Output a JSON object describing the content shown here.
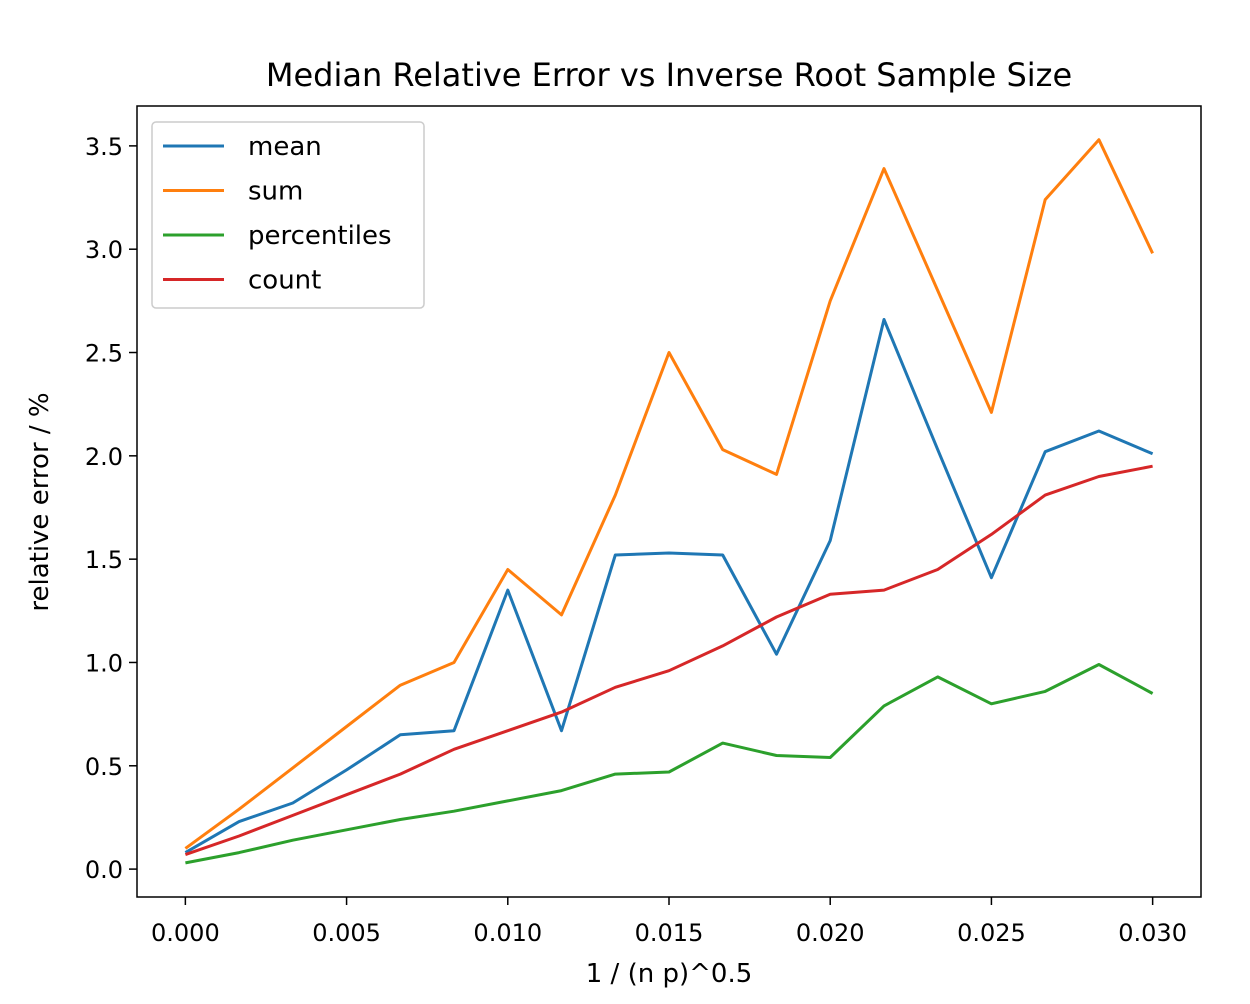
{
  "chart_data": {
    "type": "line",
    "title": "Median Relative Error vs Inverse Root Sample Size",
    "xlabel": "1 / (n p)^0.5",
    "ylabel": "relative error / %",
    "xlim": [
      -0.0015,
      0.0315
    ],
    "ylim": [
      -0.135,
      3.693
    ],
    "xticks": [
      0.0,
      0.005,
      0.01,
      0.015,
      0.02,
      0.025,
      0.03
    ],
    "xtick_labels": [
      "0.000",
      "0.005",
      "0.010",
      "0.015",
      "0.020",
      "0.025",
      "0.030"
    ],
    "yticks": [
      0.0,
      0.5,
      1.0,
      1.5,
      2.0,
      2.5,
      3.0,
      3.5
    ],
    "ytick_labels": [
      "0.0",
      "0.5",
      "1.0",
      "1.5",
      "2.0",
      "2.5",
      "3.0",
      "3.5"
    ],
    "grid": false,
    "legend_position": "top-left",
    "x": [
      0.0,
      0.001667,
      0.003333,
      0.005,
      0.006667,
      0.008333,
      0.01,
      0.011667,
      0.013333,
      0.015,
      0.016667,
      0.018333,
      0.02,
      0.021667,
      0.023333,
      0.025,
      0.026667,
      0.028333,
      0.03
    ],
    "series": [
      {
        "name": "mean",
        "color": "#1f77b4",
        "values": [
          0.08,
          0.23,
          0.32,
          0.48,
          0.65,
          0.67,
          1.35,
          0.67,
          1.52,
          1.53,
          1.52,
          1.04,
          1.59,
          2.66,
          2.03,
          1.41,
          2.02,
          2.12,
          2.01
        ]
      },
      {
        "name": "sum",
        "color": "#ff7f0e",
        "values": [
          0.1,
          0.29,
          0.49,
          0.69,
          0.89,
          1.0,
          1.45,
          1.23,
          1.81,
          2.5,
          2.03,
          1.91,
          2.75,
          3.39,
          2.8,
          2.21,
          3.24,
          3.53,
          2.98
        ]
      },
      {
        "name": "percentiles",
        "color": "#2ca02c",
        "values": [
          0.03,
          0.08,
          0.14,
          0.19,
          0.24,
          0.28,
          0.33,
          0.38,
          0.46,
          0.47,
          0.61,
          0.55,
          0.54,
          0.79,
          0.93,
          0.8,
          0.86,
          0.99,
          0.85
        ]
      },
      {
        "name": "count",
        "color": "#d62728",
        "values": [
          0.07,
          0.16,
          0.26,
          0.36,
          0.46,
          0.58,
          0.67,
          0.76,
          0.88,
          0.96,
          1.08,
          1.22,
          1.33,
          1.35,
          1.45,
          1.62,
          1.81,
          1.9,
          1.95
        ]
      }
    ]
  }
}
